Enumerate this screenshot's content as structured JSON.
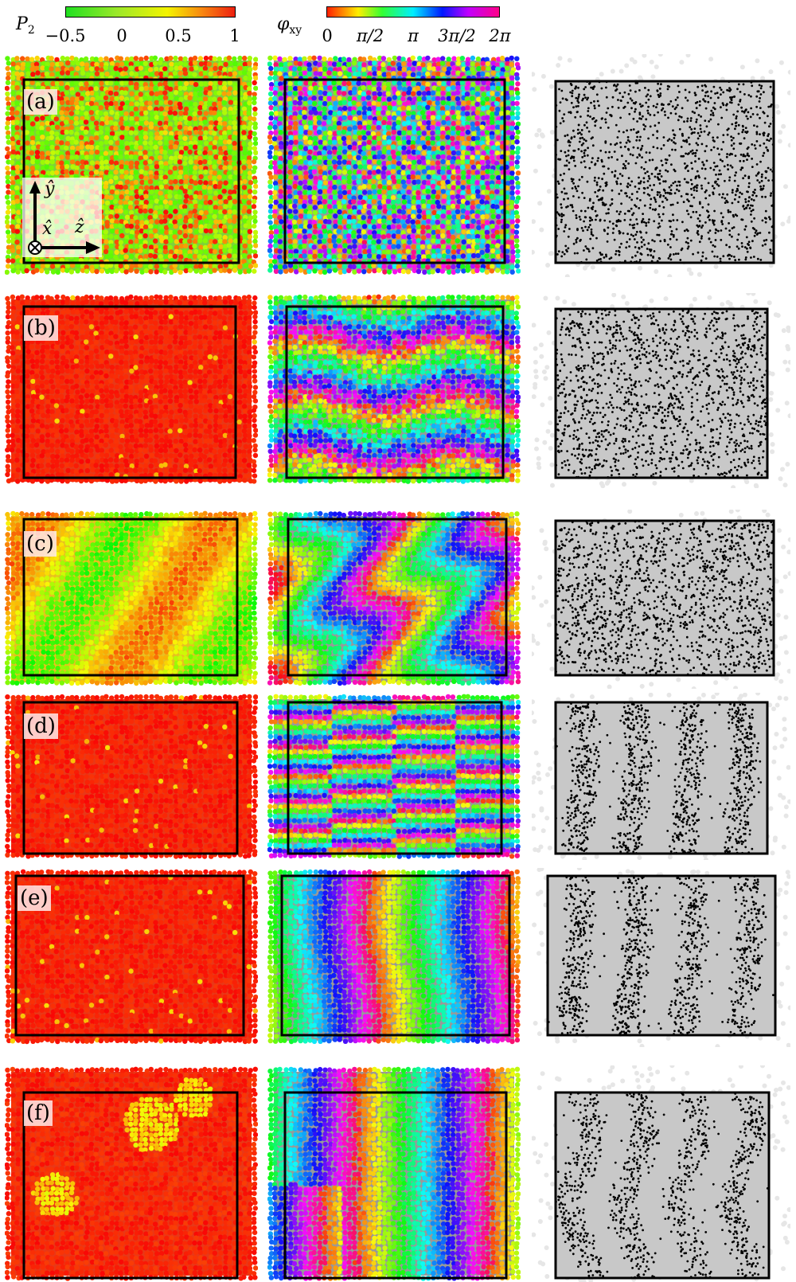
{
  "colorbars": {
    "p2": {
      "label": "P",
      "label_sub": "2",
      "ticks": [
        "−0.5",
        "0",
        "0.5",
        "1"
      ],
      "gradient": [
        "#20e020",
        "#9be82a",
        "#f4f400",
        "#f88a10",
        "#ee2010"
      ]
    },
    "phi": {
      "label": "φ",
      "label_sub": "xy",
      "ticks": [
        "0",
        "π/2",
        "π",
        "3π/2",
        "2π"
      ],
      "gradient": [
        "#ff2000",
        "#ffee00",
        "#33ff33",
        "#00eeff",
        "#0018ff",
        "#c000ff",
        "#ff0088"
      ]
    }
  },
  "rows": [
    {
      "label": "(a)",
      "p2_style": "mixed",
      "phi_style": "random",
      "map_style": "uniform"
    },
    {
      "label": "(b)",
      "p2_style": "red",
      "phi_style": "horizontal-streaks",
      "map_style": "uniform"
    },
    {
      "label": "(c)",
      "p2_style": "wavy-yellow",
      "phi_style": "wavy-domains",
      "map_style": "uniform"
    },
    {
      "label": "(d)",
      "p2_style": "red",
      "phi_style": "stripes-narrow",
      "map_style": "bands-4"
    },
    {
      "label": "(e)",
      "p2_style": "red",
      "phi_style": "bands-wide",
      "map_style": "bands-4"
    },
    {
      "label": "(f)",
      "p2_style": "red-defects",
      "phi_style": "bands-wide-mixed",
      "map_style": "bands-4-wavy"
    }
  ],
  "axes": {
    "y_label": "ŷ",
    "x_label": "x̂",
    "z_label": "ẑ",
    "out_of_plane": "⊗"
  },
  "colors": {
    "frame": "#000000",
    "map_bg": "#c8c8c8",
    "map_dot": "#000000"
  }
}
